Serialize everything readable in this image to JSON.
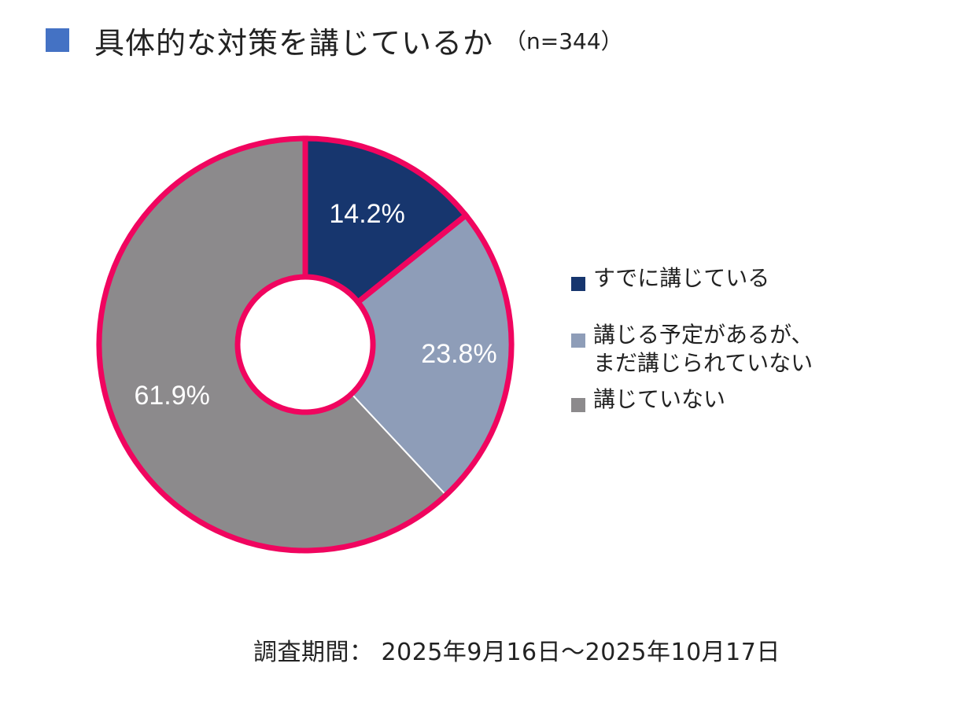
{
  "title": {
    "text": "具体的な対策を講じているか",
    "sample_size": "（n=344）",
    "marker_color": "#4472c4"
  },
  "survey_period": "調査期間： 2025年9月16日～2025年10月17日",
  "chart_data": {
    "type": "pie",
    "donut": true,
    "highlight_color": "#f0055f",
    "slices": [
      {
        "label": "すでに講じている",
        "value": 14.2,
        "display": "14.2%",
        "color": "#17366e"
      },
      {
        "label": "講じる予定があるが、\nまだ講じられていない",
        "value": 23.8,
        "display": "23.8%",
        "color": "#8e9db8"
      },
      {
        "label": "講じていない",
        "value": 61.9,
        "display": "61.9%",
        "color": "#8c8a8c"
      }
    ],
    "legend_position": "right",
    "highlighted_groups": [
      [
        0
      ],
      [
        1,
        2
      ]
    ]
  }
}
